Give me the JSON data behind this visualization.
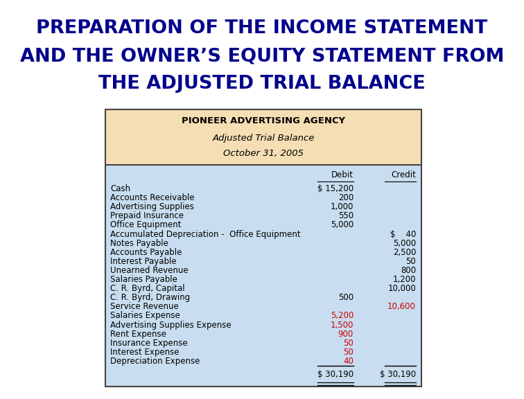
{
  "title_lines": [
    "PREPARATION OF THE INCOME STATEMENT",
    "AND THE OWNER’S EQUITY STATEMENT FROM",
    "THE ADJUSTED TRIAL BALANCE"
  ],
  "title_color": "#00008B",
  "title_fontsize": 19.5,
  "header_line1": "PIONEER ADVERTISING AGENCY",
  "header_line2": "Adjusted Trial Balance",
  "header_line3": "October 31, 2005",
  "header_bg": "#F5DEB3",
  "table_bg": "#C8DDEF",
  "col_debit": "Debit",
  "col_credit": "Credit",
  "rows": [
    {
      "account": "Cash",
      "debit": "$ 15,200",
      "credit": "",
      "debit_color": "black",
      "credit_color": "black"
    },
    {
      "account": "Accounts Receivable",
      "debit": "200",
      "credit": "",
      "debit_color": "black",
      "credit_color": "black"
    },
    {
      "account": "Advertising Supplies",
      "debit": "1,000",
      "credit": "",
      "debit_color": "black",
      "credit_color": "black"
    },
    {
      "account": "Prepaid Insurance",
      "debit": "550",
      "credit": "",
      "debit_color": "black",
      "credit_color": "black"
    },
    {
      "account": "Office Equipment",
      "debit": "5,000",
      "credit": "",
      "debit_color": "black",
      "credit_color": "black"
    },
    {
      "account": "Accumulated Depreciation -  Office Equipment",
      "debit": "",
      "credit": "$    40",
      "debit_color": "black",
      "credit_color": "black"
    },
    {
      "account": "Notes Payable",
      "debit": "",
      "credit": "5,000",
      "debit_color": "black",
      "credit_color": "black"
    },
    {
      "account": "Accounts Payable",
      "debit": "",
      "credit": "2,500",
      "debit_color": "black",
      "credit_color": "black"
    },
    {
      "account": "Interest Payable",
      "debit": "",
      "credit": "50",
      "debit_color": "black",
      "credit_color": "black"
    },
    {
      "account": "Unearned Revenue",
      "debit": "",
      "credit": "800",
      "debit_color": "black",
      "credit_color": "black"
    },
    {
      "account": "Salaries Payable",
      "debit": "",
      "credit": "1,200",
      "debit_color": "black",
      "credit_color": "black"
    },
    {
      "account": "C. R. Byrd, Capital",
      "debit": "",
      "credit": "10,000",
      "debit_color": "black",
      "credit_color": "black"
    },
    {
      "account": "C. R. Byrd, Drawing",
      "debit": "500",
      "credit": "",
      "debit_color": "black",
      "credit_color": "black"
    },
    {
      "account": "Service Revenue",
      "debit": "",
      "credit": "10,600",
      "debit_color": "black",
      "credit_color": "#CC0000"
    },
    {
      "account": "Salaries Expense",
      "debit": "5,200",
      "credit": "",
      "debit_color": "#CC0000",
      "credit_color": "black"
    },
    {
      "account": "Advertising Supplies Expense",
      "debit": "1,500",
      "credit": "",
      "debit_color": "#CC0000",
      "credit_color": "black"
    },
    {
      "account": "Rent Expense",
      "debit": "900",
      "credit": "",
      "debit_color": "#CC0000",
      "credit_color": "black"
    },
    {
      "account": "Insurance Expense",
      "debit": "50",
      "credit": "",
      "debit_color": "#CC0000",
      "credit_color": "black"
    },
    {
      "account": "Interest Expense",
      "debit": "50",
      "credit": "",
      "debit_color": "#CC0000",
      "credit_color": "black"
    },
    {
      "account": "Depreciation Expense",
      "debit": "40",
      "credit": "",
      "debit_color": "#CC0000",
      "credit_color": "black"
    }
  ],
  "total_debit": "$ 30,190",
  "total_credit": "$ 30,190",
  "bg_color": "white",
  "border_color": "#444444",
  "table_text_color": "black",
  "table_fontsize": 8.5,
  "header_fontsize": 9.5
}
